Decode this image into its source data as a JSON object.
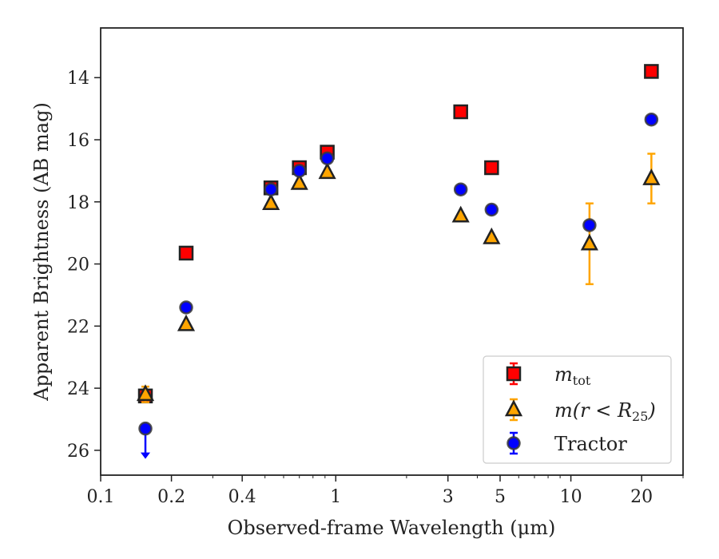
{
  "chart_data": {
    "type": "scatter",
    "xlabel": "Observed-frame Wavelength (μm)",
    "ylabel": "Apparent Brightness (AB mag)",
    "xscale": "log",
    "xlim": [
      0.1,
      30
    ],
    "ylim": [
      26.8,
      12.4
    ],
    "y_inverted": true,
    "x_ticks": [
      0.1,
      0.2,
      0.4,
      1,
      3,
      5,
      10,
      20
    ],
    "x_tick_labels": [
      "0.1",
      "0.2",
      "0.4",
      "1",
      "3",
      "5",
      "10",
      "20"
    ],
    "y_ticks": [
      14,
      16,
      18,
      20,
      22,
      24,
      26
    ],
    "y_tick_labels": [
      "14",
      "16",
      "18",
      "20",
      "22",
      "24",
      "26"
    ],
    "legend_position": "lower-right",
    "series": [
      {
        "name": "m_tot",
        "legend_label": "m",
        "legend_sub": "tot",
        "marker": "square",
        "color": "#ff0000",
        "points": [
          {
            "x": 0.155,
            "y": 24.25,
            "err": 0.2
          },
          {
            "x": 0.231,
            "y": 19.65,
            "err": 0.0
          },
          {
            "x": 0.53,
            "y": 17.55,
            "err": 0.0
          },
          {
            "x": 0.7,
            "y": 16.9,
            "err": 0.0
          },
          {
            "x": 0.92,
            "y": 16.4,
            "err": 0.0
          },
          {
            "x": 3.4,
            "y": 15.1,
            "err": 0.0
          },
          {
            "x": 4.6,
            "y": 16.9,
            "err": 0.0
          },
          {
            "x": 22.0,
            "y": 13.8,
            "err": 0.0
          }
        ]
      },
      {
        "name": "m(r < R25)",
        "legend_label": "m(r < R",
        "legend_sub": "25",
        "legend_suffix": ")",
        "marker": "triangle",
        "color": "#ffa500",
        "points": [
          {
            "x": 0.155,
            "y": 24.2,
            "err": 0.25
          },
          {
            "x": 0.231,
            "y": 21.95,
            "err": 0.0
          },
          {
            "x": 0.53,
            "y": 18.05,
            "err": 0.0
          },
          {
            "x": 0.7,
            "y": 17.4,
            "err": 0.0
          },
          {
            "x": 0.92,
            "y": 17.05,
            "err": 0.0
          },
          {
            "x": 3.4,
            "y": 18.45,
            "err": 0.0
          },
          {
            "x": 4.6,
            "y": 19.15,
            "err": 0.0
          },
          {
            "x": 12.0,
            "y": 19.35,
            "err": 1.3
          },
          {
            "x": 22.0,
            "y": 17.25,
            "err": 0.8
          }
        ]
      },
      {
        "name": "Tractor",
        "legend_label": "Tractor",
        "marker": "circle",
        "color": "#0000ff",
        "points": [
          {
            "x": 0.155,
            "y": 25.3,
            "err": 0.0,
            "upper_limit": true
          },
          {
            "x": 0.231,
            "y": 21.4,
            "err": 0.0
          },
          {
            "x": 0.53,
            "y": 17.6,
            "err": 0.0
          },
          {
            "x": 0.7,
            "y": 17.0,
            "err": 0.0
          },
          {
            "x": 0.92,
            "y": 16.6,
            "err": 0.0
          },
          {
            "x": 3.4,
            "y": 17.6,
            "err": 0.0
          },
          {
            "x": 4.6,
            "y": 18.25,
            "err": 0.0
          },
          {
            "x": 12.0,
            "y": 18.75,
            "err": 0.0
          },
          {
            "x": 22.0,
            "y": 15.35,
            "err": 0.0
          }
        ]
      }
    ]
  }
}
